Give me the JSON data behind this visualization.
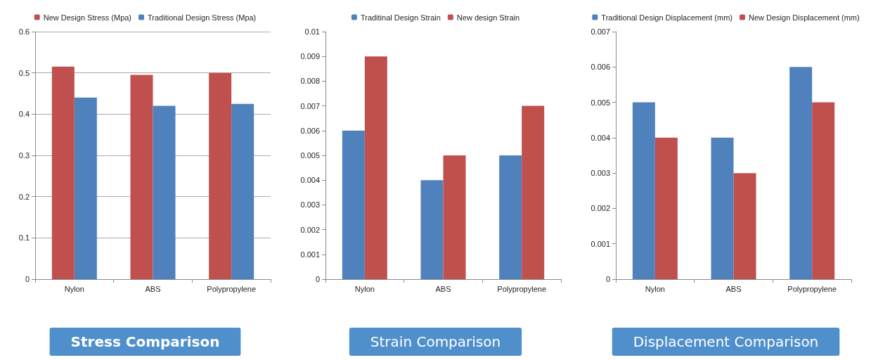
{
  "chart_data": [
    {
      "type": "bar",
      "title": "Stress Comparison",
      "categories": [
        "Nylon",
        "ABS",
        "Polypropylene"
      ],
      "series": [
        {
          "name": "New Design Stress (Mpa)",
          "color": "#c0504d",
          "values": [
            0.515,
            0.495,
            0.5
          ]
        },
        {
          "name": "Traditional Design Stress (Mpa)",
          "color": "#4f81bd",
          "values": [
            0.44,
            0.42,
            0.425
          ]
        }
      ],
      "ylim": [
        0,
        0.6
      ],
      "yticks": [
        0,
        0.1,
        0.2,
        0.3,
        0.4,
        0.5,
        0.6
      ],
      "grid": "y",
      "legend": "top"
    },
    {
      "type": "bar",
      "title": "Strain Comparison",
      "categories": [
        "Nylon",
        "ABS",
        "Polypropylene"
      ],
      "series": [
        {
          "name": "Traditinal Design Strain",
          "color": "#4f81bd",
          "values": [
            0.006,
            0.004,
            0.005
          ]
        },
        {
          "name": "New design Strain",
          "color": "#c0504d",
          "values": [
            0.009,
            0.005,
            0.007
          ]
        }
      ],
      "ylim": [
        0,
        0.01
      ],
      "yticks": [
        0,
        0.001,
        0.002,
        0.003,
        0.004,
        0.005,
        0.006,
        0.007,
        0.008,
        0.009,
        0.01
      ],
      "legend": "top"
    },
    {
      "type": "bar",
      "title": "Displacement Comparison",
      "categories": [
        "Nylon",
        "ABS",
        "Polypropylene"
      ],
      "series": [
        {
          "name": "Traditional Design Displacement (mm)",
          "color": "#4f81bd",
          "values": [
            0.005,
            0.004,
            0.006
          ]
        },
        {
          "name": "New Design Displacement (mm)",
          "color": "#c0504d",
          "values": [
            0.004,
            0.003,
            0.005
          ]
        }
      ],
      "ylim": [
        0,
        0.007
      ],
      "yticks": [
        0,
        0.001,
        0.002,
        0.003,
        0.004,
        0.005,
        0.006,
        0.007
      ],
      "legend": "top"
    }
  ]
}
